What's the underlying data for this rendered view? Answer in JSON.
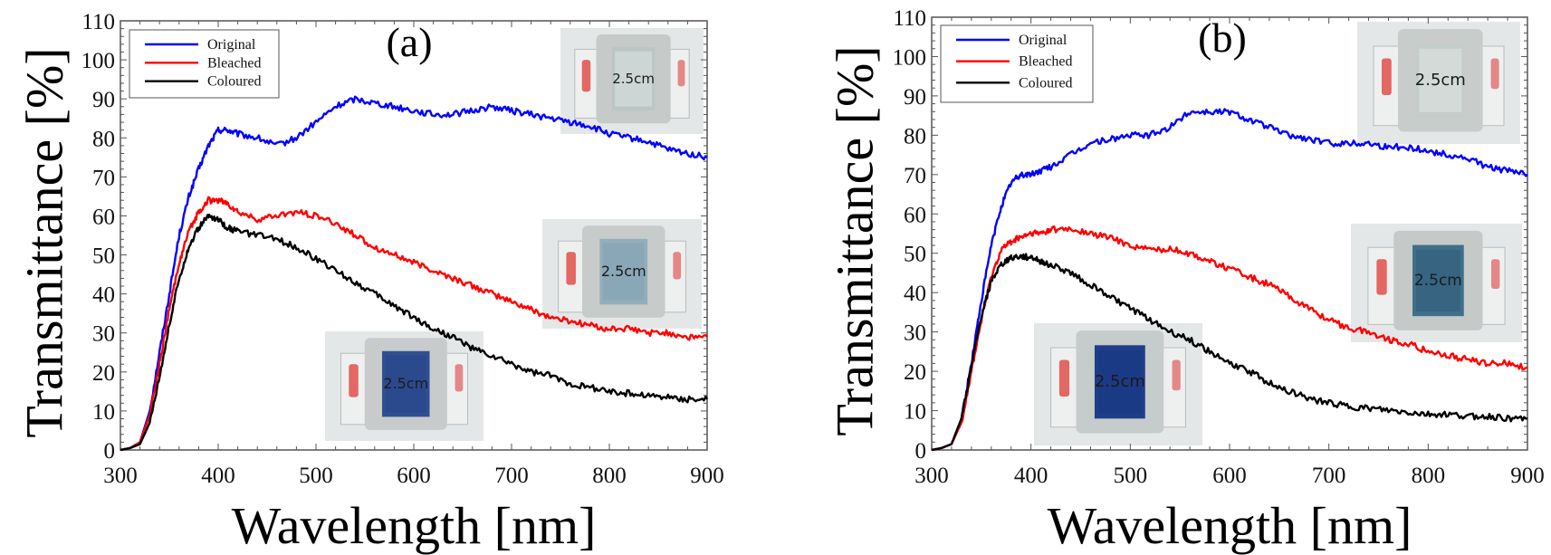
{
  "chart_data": [
    {
      "type": "line",
      "panel_label": "(a)",
      "title": "",
      "xlabel": "Wavelength [nm]",
      "ylabel": "Transmittance [%]",
      "xlim": [
        300,
        900
      ],
      "ylim": [
        0,
        110
      ],
      "xticks": [
        300,
        400,
        500,
        600,
        700,
        800,
        900
      ],
      "yticks": [
        0,
        10,
        20,
        30,
        40,
        50,
        60,
        70,
        80,
        90,
        100,
        110
      ],
      "grid": false,
      "legend_position": "top-left",
      "x": [
        300,
        310,
        320,
        330,
        340,
        350,
        360,
        370,
        380,
        390,
        400,
        410,
        420,
        440,
        460,
        480,
        500,
        520,
        540,
        560,
        580,
        600,
        620,
        640,
        660,
        680,
        700,
        720,
        740,
        760,
        780,
        800,
        820,
        840,
        860,
        880,
        900
      ],
      "series": [
        {
          "name": "Original",
          "color": "#0000ff",
          "values": [
            0,
            0.5,
            2,
            10,
            25,
            40,
            55,
            65,
            72,
            78,
            82,
            82,
            81,
            80,
            78,
            80,
            84,
            88,
            90,
            89,
            88,
            87,
            86,
            86,
            87,
            88,
            87,
            86,
            85,
            84,
            83,
            81,
            80,
            79,
            77,
            76,
            75
          ]
        },
        {
          "name": "Bleached",
          "color": "#ff0000",
          "values": [
            0,
            0.5,
            2,
            9,
            22,
            36,
            48,
            56,
            61,
            64,
            64,
            63,
            61,
            59,
            60,
            61,
            60,
            58,
            55,
            52,
            50,
            48,
            46,
            44,
            42,
            40,
            38,
            36,
            34,
            33,
            32,
            31,
            31,
            30,
            30,
            29,
            29
          ]
        },
        {
          "name": "Coloured",
          "color": "#000000",
          "values": [
            0,
            0.5,
            1.5,
            7,
            19,
            32,
            44,
            52,
            57,
            60,
            59,
            57,
            56,
            55,
            54,
            52,
            49,
            46,
            43,
            40,
            37,
            34,
            31,
            29,
            26,
            24,
            22,
            20,
            19,
            17,
            16,
            15,
            14.5,
            14,
            13.5,
            13,
            13
          ]
        }
      ],
      "insets": [
        {
          "description": "original-window-photo",
          "label": "2.5cm"
        },
        {
          "description": "bleached-window-photo",
          "label": "2.5cm"
        },
        {
          "description": "coloured-window-photo",
          "label": "2.5cm"
        }
      ]
    },
    {
      "type": "line",
      "panel_label": "(b)",
      "title": "",
      "xlabel": "Wavelength [nm]",
      "ylabel": "Transmittance [%]",
      "xlim": [
        300,
        900
      ],
      "ylim": [
        0,
        110
      ],
      "xticks": [
        300,
        400,
        500,
        600,
        700,
        800,
        900
      ],
      "yticks": [
        0,
        10,
        20,
        30,
        40,
        50,
        60,
        70,
        80,
        90,
        100,
        110
      ],
      "grid": false,
      "legend_position": "top-left",
      "x": [
        300,
        310,
        320,
        330,
        340,
        350,
        360,
        370,
        380,
        390,
        400,
        410,
        420,
        440,
        460,
        480,
        500,
        520,
        540,
        560,
        580,
        600,
        620,
        640,
        660,
        680,
        700,
        720,
        740,
        760,
        780,
        800,
        820,
        840,
        860,
        880,
        900
      ],
      "series": [
        {
          "name": "Original",
          "color": "#0000ff",
          "values": [
            0,
            0.5,
            1.5,
            8,
            22,
            38,
            52,
            62,
            68,
            70,
            70,
            71,
            72,
            75,
            78,
            79,
            80,
            80,
            82,
            86,
            86,
            86,
            84,
            82,
            80,
            79,
            78,
            78,
            78,
            77,
            77,
            76,
            75,
            74,
            72,
            71,
            70
          ]
        },
        {
          "name": "Bleached",
          "color": "#ff0000",
          "values": [
            0,
            0.5,
            1.5,
            7,
            20,
            33,
            44,
            51,
            53,
            54,
            55,
            55,
            56,
            56,
            55,
            54,
            52,
            51,
            51,
            50,
            48,
            46,
            44,
            42,
            39,
            36,
            33,
            31,
            30,
            28,
            27,
            25,
            24,
            23,
            22,
            22,
            21
          ]
        },
        {
          "name": "Coloured",
          "color": "#000000",
          "values": [
            0,
            0.5,
            1.5,
            8,
            21,
            34,
            43,
            47,
            49,
            49,
            49,
            48,
            47,
            45,
            42,
            39,
            36,
            33,
            30,
            28,
            25,
            22,
            20,
            17,
            15,
            13,
            12,
            11,
            10.5,
            10,
            9.5,
            9,
            9,
            8.5,
            8.5,
            8,
            8
          ]
        }
      ],
      "insets": [
        {
          "description": "original-window-photo",
          "label": "2.5cm"
        },
        {
          "description": "bleached-window-photo",
          "label": "2.5cm"
        },
        {
          "description": "coloured-window-photo",
          "label": "2.5cm"
        }
      ]
    }
  ]
}
